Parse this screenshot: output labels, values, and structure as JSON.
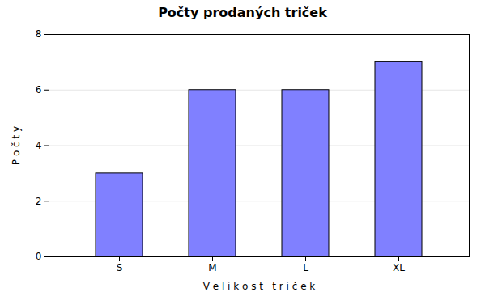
{
  "chart_data": {
    "type": "bar",
    "title": "Počty prodaných triček",
    "categories": [
      "S",
      "M",
      "L",
      "XL"
    ],
    "values": [
      3,
      6,
      6,
      7
    ],
    "color": "#8080ff",
    "xlabel": "V e l i k o s t   t r i č e k",
    "ylabel": "P o č t y",
    "ylim": [
      0,
      8
    ],
    "yticks": [
      0,
      2,
      4,
      6,
      8
    ],
    "grid": true
  }
}
